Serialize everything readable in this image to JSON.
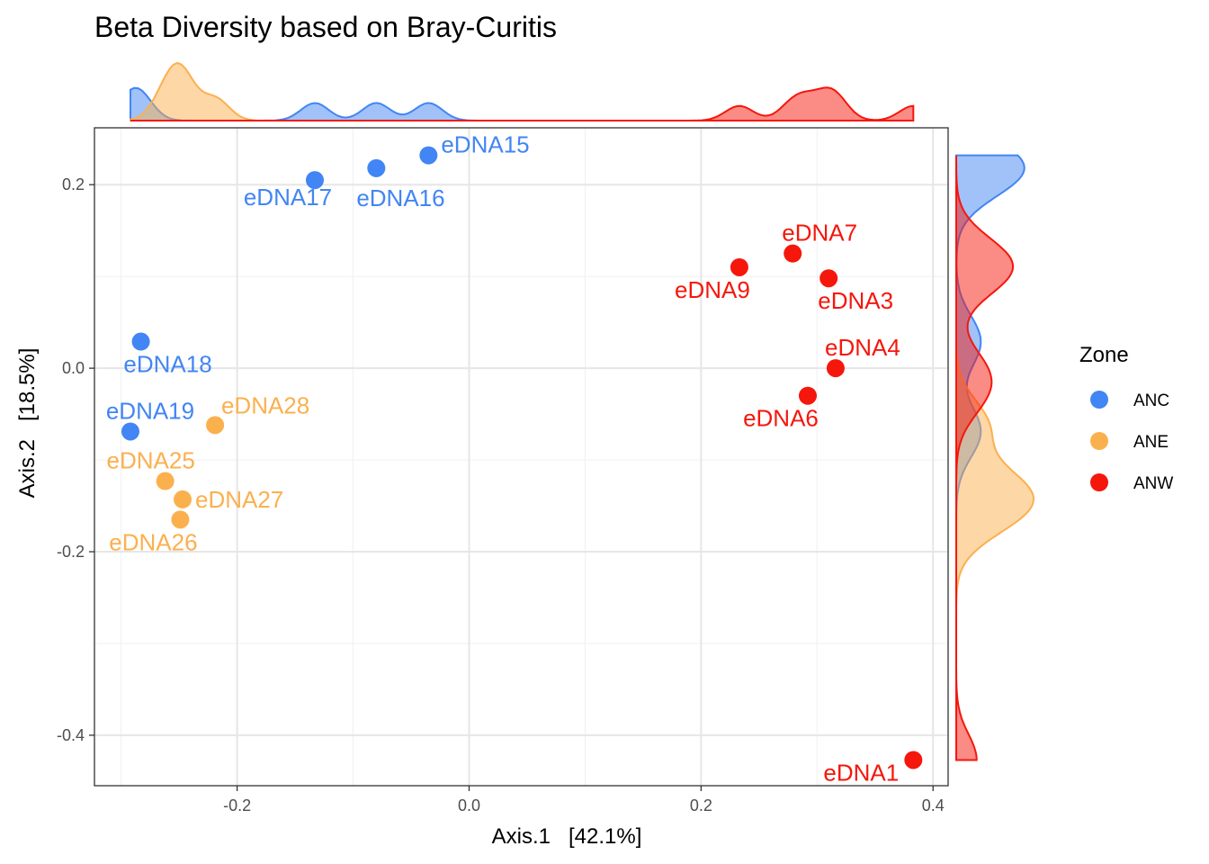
{
  "chart_data": {
    "type": "scatter",
    "title": "Beta Diversity based on Bray-Curitis",
    "xlabel": "Axis.1   [42.1%]",
    "ylabel": "Axis.2   [18.5%]",
    "xlim": [
      -0.323,
      0.413
    ],
    "ylim": [
      -0.455,
      0.262
    ],
    "x_ticks": [
      -0.2,
      0.0,
      0.2,
      0.4
    ],
    "x_tick_labels": [
      "-0.2",
      "0.0",
      "0.2",
      "0.4"
    ],
    "y_ticks": [
      0.2,
      0.0,
      -0.2,
      -0.4
    ],
    "y_tick_labels": [
      "0.2",
      "0.0",
      "-0.2",
      "-0.4"
    ],
    "grid": true,
    "marginal_density": {
      "top": true,
      "right": true
    },
    "legend": {
      "title": "Zone",
      "placement": "right",
      "entries": [
        {
          "label": "ANC",
          "color": "#4285f4"
        },
        {
          "label": "ANE",
          "color": "#fbb04e"
        },
        {
          "label": "ANW",
          "color": "#f5170c"
        }
      ]
    },
    "series": [
      {
        "name": "ANC",
        "color": "#4285f4",
        "points": [
          {
            "label": "eDNA15",
            "x": -0.035,
            "y": 0.232
          },
          {
            "label": "eDNA16",
            "x": -0.08,
            "y": 0.218
          },
          {
            "label": "eDNA17",
            "x": -0.133,
            "y": 0.205
          },
          {
            "label": "eDNA18",
            "x": -0.283,
            "y": 0.029
          },
          {
            "label": "eDNA19",
            "x": -0.292,
            "y": -0.069
          }
        ]
      },
      {
        "name": "ANE",
        "color": "#fbb04e",
        "points": [
          {
            "label": "eDNA28",
            "x": -0.219,
            "y": -0.062
          },
          {
            "label": "eDNA25",
            "x": -0.262,
            "y": -0.123
          },
          {
            "label": "eDNA27",
            "x": -0.247,
            "y": -0.143
          },
          {
            "label": "eDNA26",
            "x": -0.249,
            "y": -0.165
          }
        ]
      },
      {
        "name": "ANW",
        "color": "#f5170c",
        "points": [
          {
            "label": "eDNA7",
            "x": 0.279,
            "y": 0.125
          },
          {
            "label": "eDNA9",
            "x": 0.233,
            "y": 0.11
          },
          {
            "label": "eDNA3",
            "x": 0.31,
            "y": 0.098
          },
          {
            "label": "eDNA4",
            "x": 0.316,
            "y": 0.0
          },
          {
            "label": "eDNA6",
            "x": 0.292,
            "y": -0.03
          },
          {
            "label": "eDNA1",
            "x": 0.383,
            "y": -0.427
          }
        ]
      }
    ]
  }
}
